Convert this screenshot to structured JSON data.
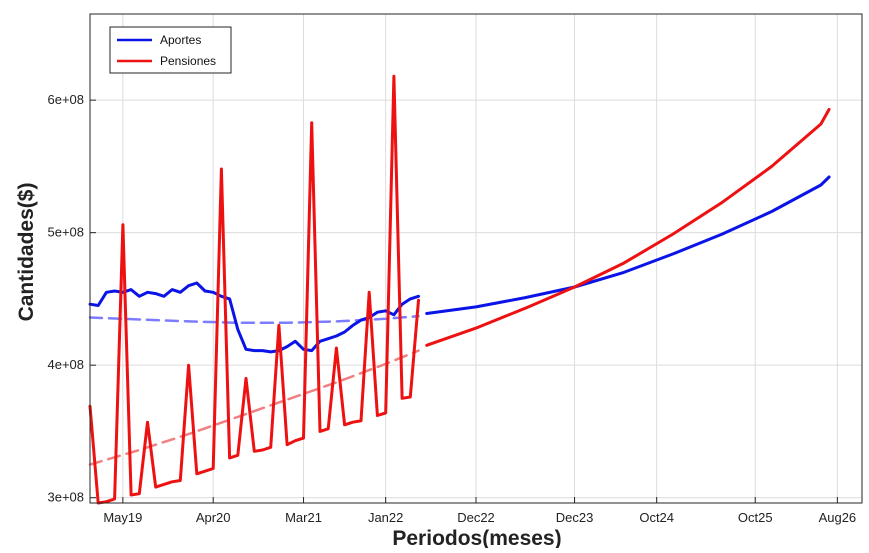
{
  "chart_data": {
    "type": "line",
    "title": "",
    "xlabel": "Periodos(meses)",
    "ylabel": "Cantidades($)",
    "x_range_months": [
      "2019-01",
      "2026-11"
    ],
    "ylim": [
      296000000,
      665000000
    ],
    "grid": true,
    "legend_position": "top-left",
    "x_ticks": [
      {
        "label": "May19",
        "date": "2019-05"
      },
      {
        "label": "Apr20",
        "date": "2020-04"
      },
      {
        "label": "Mar21",
        "date": "2021-03"
      },
      {
        "label": "Jan22",
        "date": "2022-01"
      },
      {
        "label": "Dec22",
        "date": "2022-12"
      },
      {
        "label": "Dec23",
        "date": "2023-12"
      },
      {
        "label": "Oct24",
        "date": "2024-10"
      },
      {
        "label": "Oct25",
        "date": "2025-10"
      },
      {
        "label": "Aug26",
        "date": "2026-08"
      }
    ],
    "y_ticks": [
      {
        "label": "3e+08",
        "value": 300000000
      },
      {
        "label": "4e+08",
        "value": 400000000
      },
      {
        "label": "5e+08",
        "value": 500000000
      },
      {
        "label": "6e+08",
        "value": 600000000
      }
    ],
    "legend": [
      "Aportes",
      "Pensiones"
    ],
    "series": [
      {
        "name": "Aportes",
        "color": "#0a14e6",
        "style": "solid",
        "x": [
          "2019-01",
          "2019-02",
          "2019-03",
          "2019-04",
          "2019-05",
          "2019-06",
          "2019-07",
          "2019-08",
          "2019-09",
          "2019-10",
          "2019-11",
          "2019-12",
          "2020-01",
          "2020-02",
          "2020-03",
          "2020-04",
          "2020-05",
          "2020-06",
          "2020-07",
          "2020-08",
          "2020-09",
          "2020-10",
          "2020-11",
          "2020-12",
          "2021-01",
          "2021-02",
          "2021-03",
          "2021-04",
          "2021-05",
          "2021-06",
          "2021-07",
          "2021-08",
          "2021-09",
          "2021-10",
          "2021-11",
          "2021-12",
          "2022-01",
          "2022-02",
          "2022-03",
          "2022-04",
          "2022-05"
        ],
        "values": [
          446000000,
          445000000,
          455000000,
          456000000,
          455000000,
          457000000,
          452000000,
          455000000,
          454000000,
          452000000,
          457000000,
          455000000,
          460000000,
          462000000,
          456000000,
          455000000,
          452000000,
          450000000,
          427000000,
          412000000,
          411000000,
          411000000,
          410000000,
          411000000,
          414000000,
          418000000,
          412000000,
          411000000,
          418000000,
          420000000,
          422000000,
          425000000,
          430000000,
          434000000,
          436000000,
          440000000,
          441000000,
          438000000,
          446000000,
          450000000,
          452000000
        ]
      },
      {
        "name": "Pensiones",
        "color": "#ee1111",
        "style": "solid",
        "x": [
          "2019-01",
          "2019-02",
          "2019-03",
          "2019-04",
          "2019-05",
          "2019-06",
          "2019-07",
          "2019-08",
          "2019-09",
          "2019-10",
          "2019-11",
          "2019-12",
          "2020-01",
          "2020-02",
          "2020-03",
          "2020-04",
          "2020-05",
          "2020-06",
          "2020-07",
          "2020-08",
          "2020-09",
          "2020-10",
          "2020-11",
          "2020-12",
          "2021-01",
          "2021-02",
          "2021-03",
          "2021-04",
          "2021-05",
          "2021-06",
          "2021-07",
          "2021-08",
          "2021-09",
          "2021-10",
          "2021-11",
          "2021-12",
          "2022-01",
          "2022-02",
          "2022-03",
          "2022-04",
          "2022-05"
        ],
        "values": [
          369000000,
          296000000,
          297000000,
          299000000,
          506000000,
          302000000,
          303000000,
          357000000,
          308000000,
          310000000,
          312000000,
          313000000,
          400000000,
          318000000,
          320000000,
          322000000,
          548000000,
          330000000,
          332000000,
          390000000,
          335000000,
          336000000,
          338000000,
          430000000,
          340000000,
          343000000,
          345000000,
          583000000,
          350000000,
          352000000,
          413000000,
          355000000,
          357000000,
          358000000,
          455000000,
          362000000,
          364000000,
          618000000,
          375000000,
          376000000,
          449000000
        ]
      },
      {
        "name": "Aportes (tendencia)",
        "color": "#7c7cff",
        "style": "dashed",
        "x": [
          "2019-01",
          "2019-07",
          "2020-01",
          "2020-07",
          "2021-01",
          "2021-07",
          "2022-01",
          "2022-05"
        ],
        "values": [
          436000000,
          434500000,
          433000000,
          432000000,
          432000000,
          433000000,
          435000000,
          437000000
        ]
      },
      {
        "name": "Pensiones (tendencia)",
        "color": "#f08080",
        "style": "dashed",
        "x": [
          "2019-01",
          "2019-07",
          "2020-01",
          "2020-07",
          "2021-01",
          "2021-07",
          "2022-01",
          "2022-05"
        ],
        "values": [
          325000000,
          336000000,
          348000000,
          361000000,
          374000000,
          387000000,
          401000000,
          411000000
        ]
      },
      {
        "name": "Aportes (proyección)",
        "color": "#0a14e6",
        "style": "solid",
        "x": [
          "2022-06",
          "2022-12",
          "2023-06",
          "2023-12",
          "2024-06",
          "2024-12",
          "2025-06",
          "2025-12",
          "2026-06",
          "2026-07"
        ],
        "values": [
          439000000,
          444000000,
          451000000,
          459000000,
          470000000,
          484000000,
          499000000,
          516000000,
          536000000,
          542000000
        ]
      },
      {
        "name": "Pensiones (proyección)",
        "color": "#ee1111",
        "style": "solid",
        "x": [
          "2022-06",
          "2022-12",
          "2023-06",
          "2023-12",
          "2024-06",
          "2024-12",
          "2025-06",
          "2025-12",
          "2026-06",
          "2026-07"
        ],
        "values": [
          415000000,
          428000000,
          443000000,
          459000000,
          477000000,
          499000000,
          523000000,
          550000000,
          582000000,
          593000000
        ]
      }
    ]
  }
}
